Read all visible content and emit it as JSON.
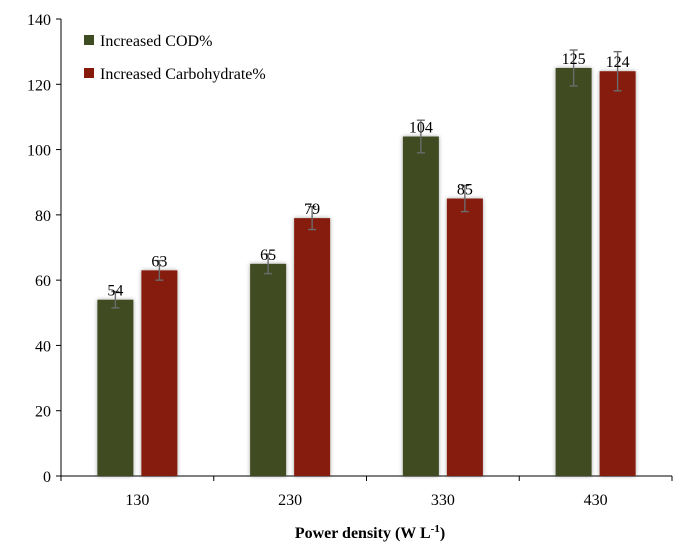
{
  "chart_data": {
    "type": "bar",
    "categories": [
      "130",
      "230",
      "330",
      "430"
    ],
    "series": [
      {
        "name": "Increased COD%",
        "color": "#3f4c23",
        "values": [
          54,
          65,
          104,
          125
        ],
        "errors": [
          2.5,
          3,
          5,
          5.5
        ],
        "labels": [
          "54",
          "65",
          "104",
          "125"
        ]
      },
      {
        "name": "Increased Carbohydrate%",
        "color": "#861a0a",
        "values": [
          63,
          79,
          85,
          124
        ],
        "errors": [
          3,
          3.5,
          4,
          6
        ],
        "labels": [
          "63",
          "79",
          "85",
          "124"
        ]
      }
    ],
    "xlabel": "Power density (W L",
    "xlabel_sup": "-1",
    "xlabel_suffix": ")",
    "ylabel": "",
    "ylim": [
      0,
      140
    ],
    "yticks": [
      "0",
      "20",
      "40",
      "60",
      "80",
      "100",
      "120",
      "140"
    ],
    "grid": false,
    "legend_position": "top-left"
  }
}
